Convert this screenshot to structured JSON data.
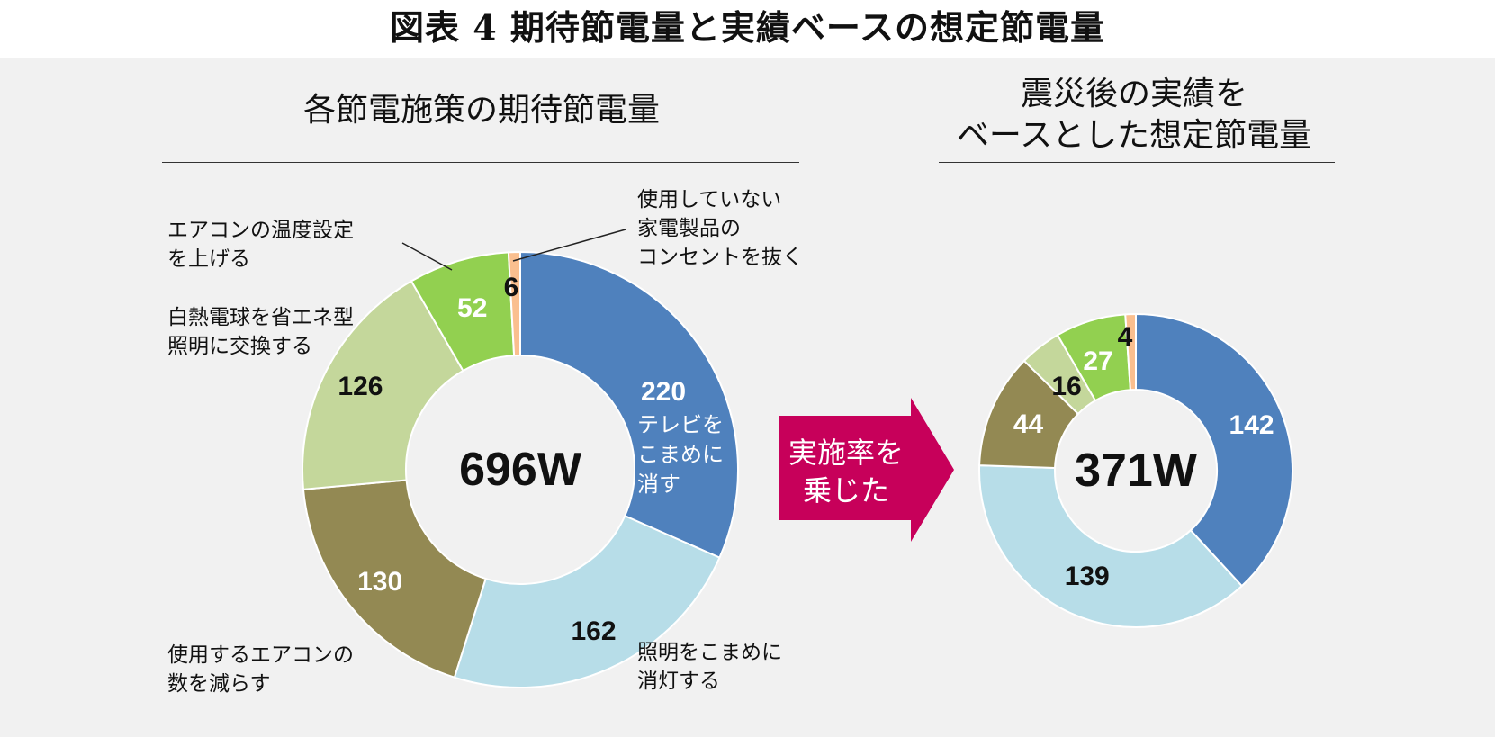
{
  "figure_title": "図表 4 期待節電量と実績ベースの想定節電量",
  "left_panel": {
    "title": "各節電施策の期待節電量",
    "total_label": "696W",
    "inner_note": [
      "テレビを",
      "こまめに",
      "消す"
    ],
    "callouts": {
      "aircon_temp": [
        "エアコンの温度設定",
        "を上げる"
      ],
      "led": [
        "白熱電球を省エネ型",
        "照明に交換する"
      ],
      "aircon_count": [
        "使用するエアコンの",
        "数を減らす"
      ],
      "lights_off": [
        "照明をこまめに",
        "消灯する"
      ],
      "unplug": [
        "使用していない",
        "家電製品の",
        "コンセントを抜く"
      ]
    }
  },
  "right_panel": {
    "title_line1": "震災後の実績を",
    "title_line2": "ベースとした想定節電量",
    "total_label": "371W"
  },
  "arrow": {
    "line1": "実施率を",
    "line2": "乗じた",
    "color": "#c7005a"
  },
  "chart_data": [
    {
      "type": "pie",
      "title": "各節電施策の期待節電量",
      "total": "696W",
      "slices": [
        {
          "category": "テレビをこまめに消す",
          "value": 220,
          "color": "#4f81bd",
          "label_color": "#ffffff"
        },
        {
          "category": "照明をこまめに消灯する",
          "value": 162,
          "color": "#b7dde8",
          "label_color": "#111111"
        },
        {
          "category": "使用するエアコンの数を減らす",
          "value": 130,
          "color": "#938953",
          "label_color": "#ffffff"
        },
        {
          "category": "白熱電球を省エネ型照明に交換する",
          "value": 126,
          "color": "#c4d79b",
          "label_color": "#111111"
        },
        {
          "category": "エアコンの温度設定を上げる",
          "value": 52,
          "color": "#92d050",
          "label_color": "#ffffff"
        },
        {
          "category": "使用していない家電製品のコンセントを抜く",
          "value": 6,
          "color": "#fabf8f",
          "label_color": "#111111"
        }
      ]
    },
    {
      "type": "pie",
      "title": "震災後の実績をベースとした想定節電量",
      "total": "371W",
      "slices": [
        {
          "category": "テレビをこまめに消す",
          "value": 142,
          "color": "#4f81bd",
          "label_color": "#ffffff"
        },
        {
          "category": "照明をこまめに消灯する",
          "value": 139,
          "color": "#b7dde8",
          "label_color": "#111111"
        },
        {
          "category": "使用するエアコンの数を減らす",
          "value": 44,
          "color": "#938953",
          "label_color": "#ffffff"
        },
        {
          "category": "白熱電球を省エネ型照明に交換する",
          "value": 16,
          "color": "#c4d79b",
          "label_color": "#111111"
        },
        {
          "category": "エアコンの温度設定を上げる",
          "value": 27,
          "color": "#92d050",
          "label_color": "#ffffff"
        },
        {
          "category": "使用していない家電製品のコンセントを抜く",
          "value": 4,
          "color": "#fabf8f",
          "label_color": "#111111"
        }
      ]
    }
  ]
}
